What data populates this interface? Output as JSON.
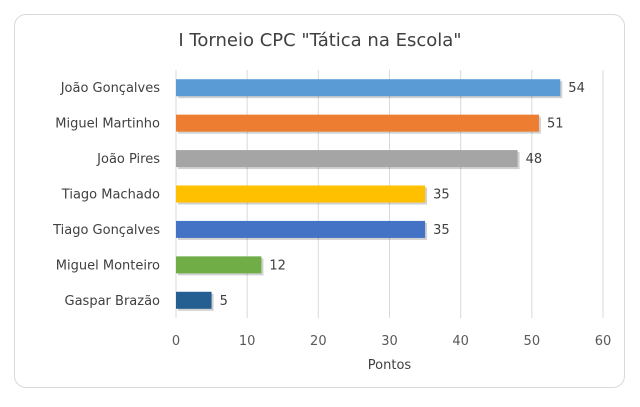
{
  "chart_data": {
    "type": "bar",
    "orientation": "horizontal",
    "title": "I Torneio CPC \"Tática na Escola\"",
    "xlabel": "Pontos",
    "ylabel": "",
    "xlim": [
      0,
      60
    ],
    "x_ticks": [
      0,
      10,
      20,
      30,
      40,
      50,
      60
    ],
    "grid": true,
    "categories": [
      "João Gonçalves",
      "Miguel Martinho",
      "João Pires",
      "Tiago Machado",
      "Tiago Gonçalves",
      "Miguel Monteiro",
      "Gaspar Brazão"
    ],
    "values": [
      54,
      51,
      48,
      35,
      35,
      12,
      5
    ],
    "colors": [
      "#5b9bd5",
      "#ed7d31",
      "#a5a5a5",
      "#ffc000",
      "#4472c4",
      "#70ad47",
      "#255e91"
    ]
  }
}
